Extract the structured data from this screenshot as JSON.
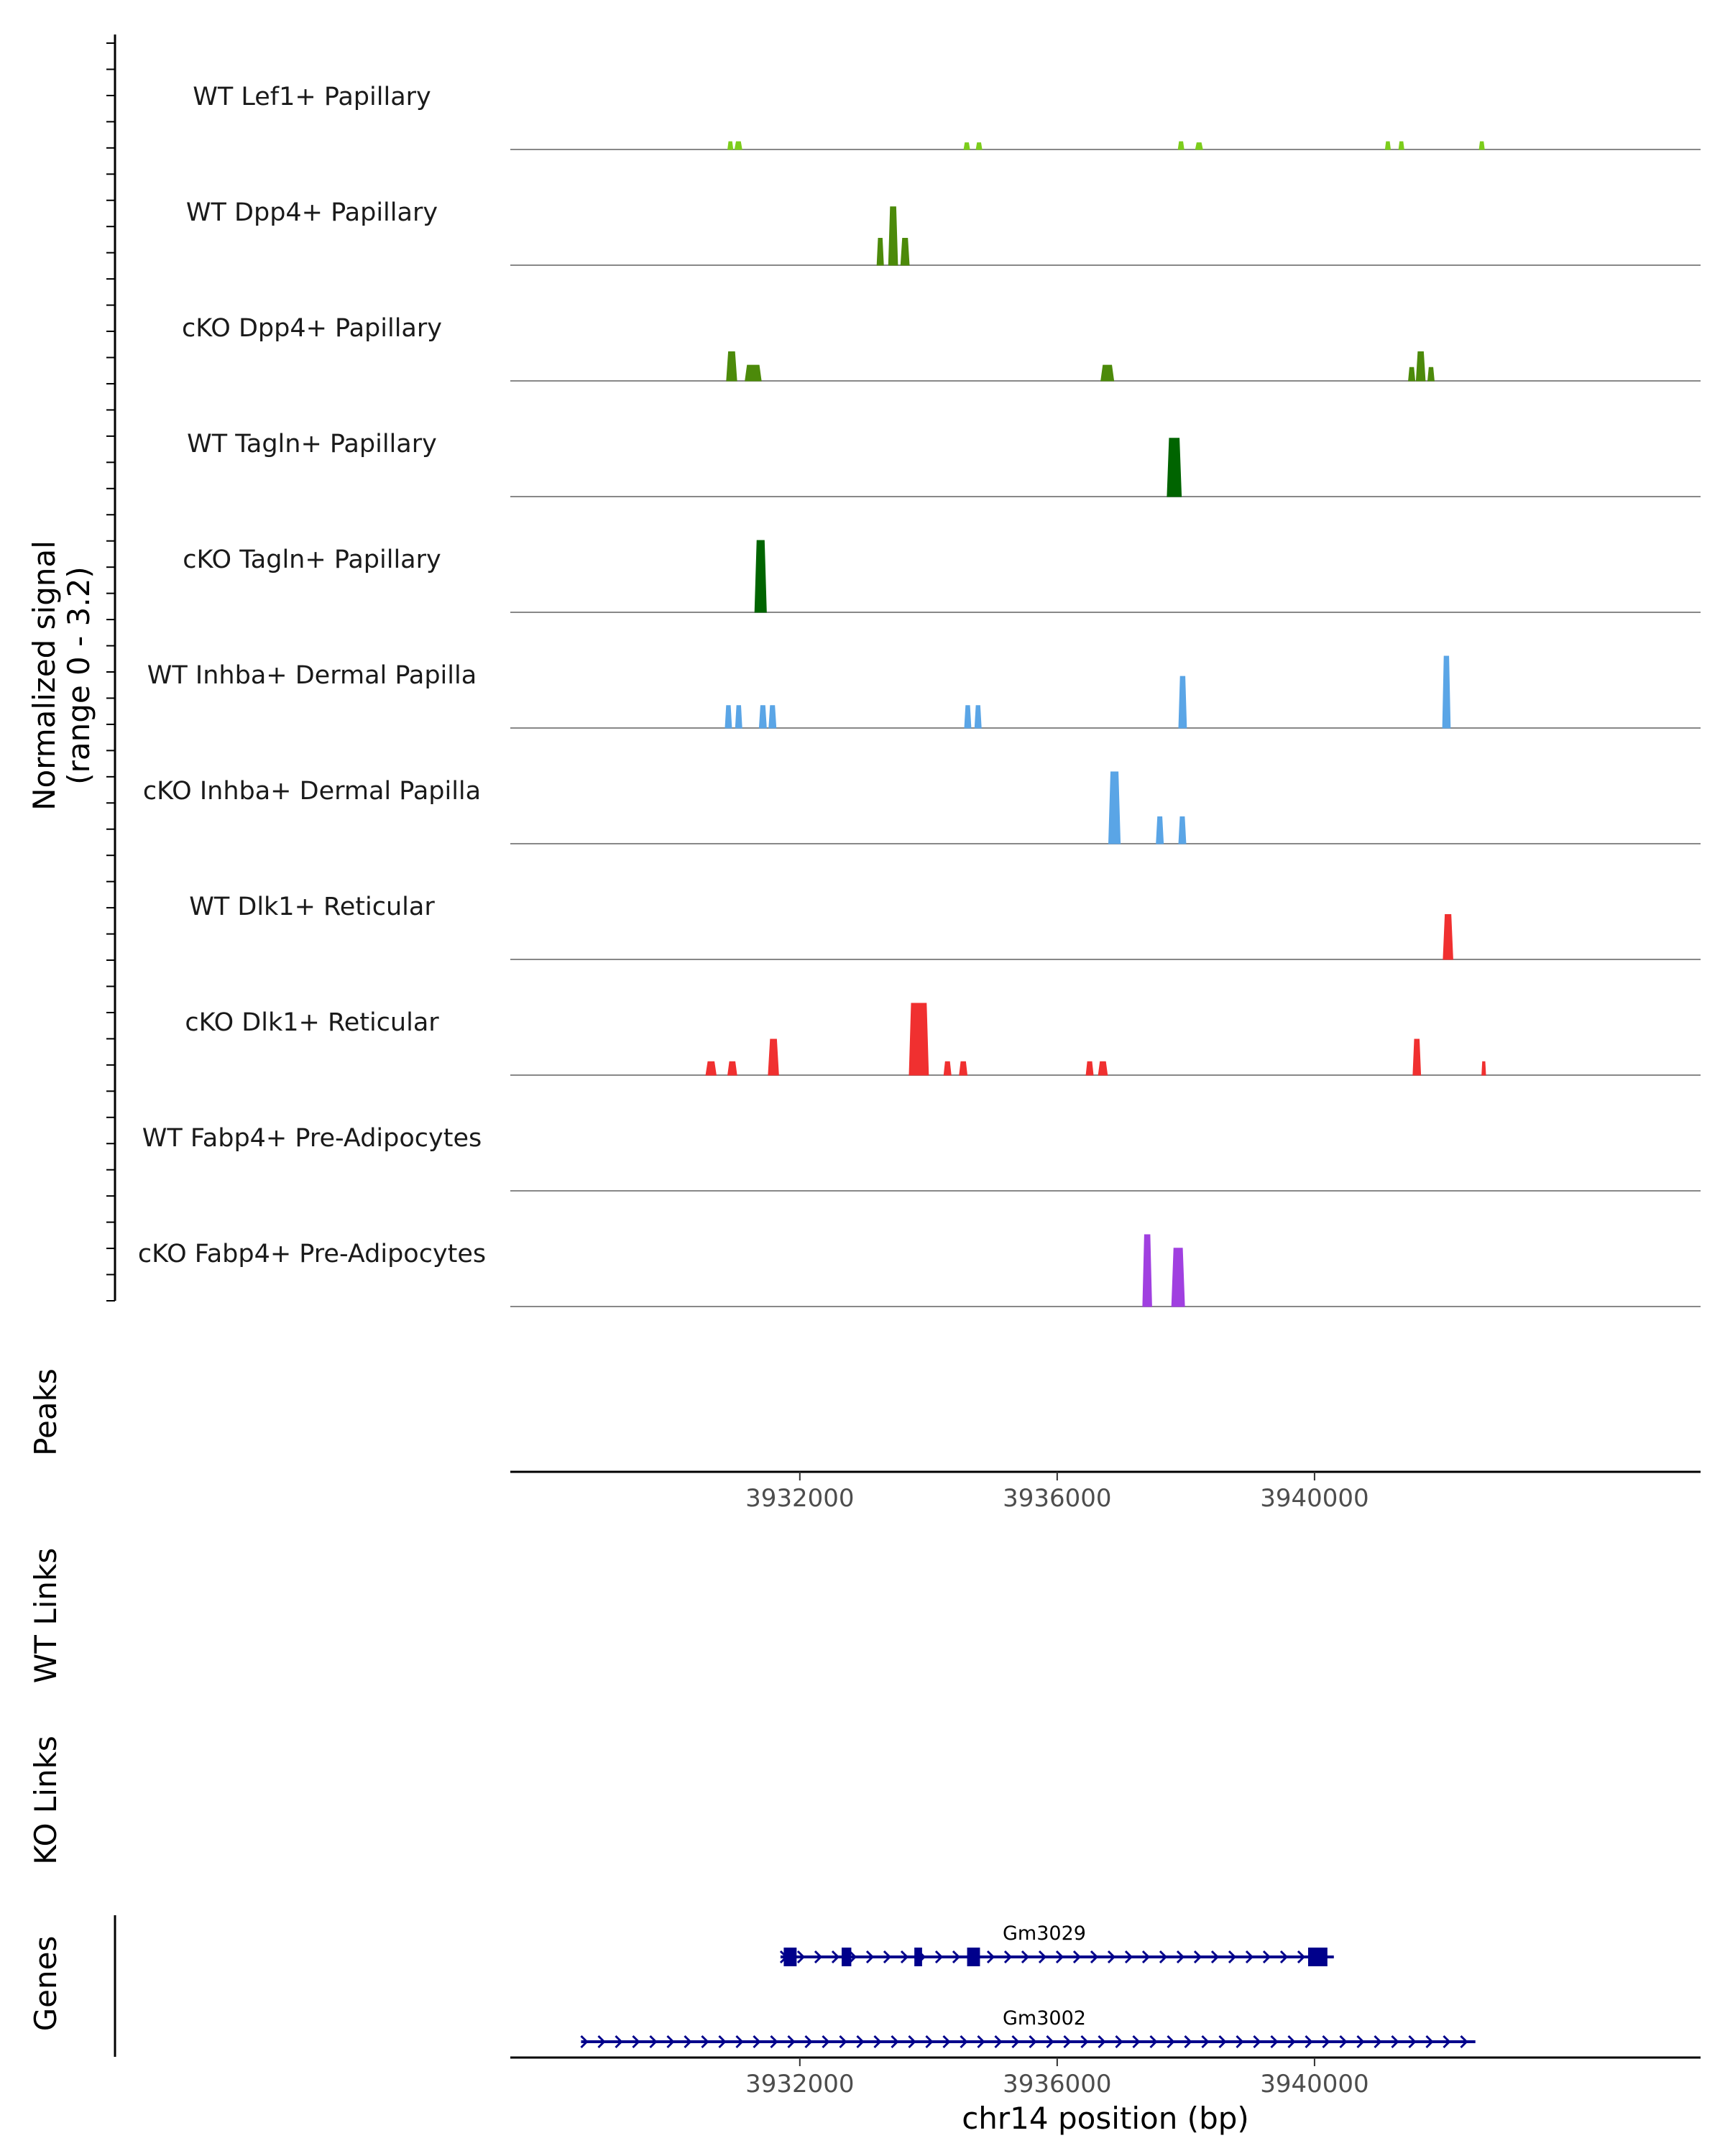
{
  "chart_data": {
    "type": "area",
    "title": "",
    "chromosome": "chr14",
    "xlabel": "chr14 position (bp)",
    "xlim": [
      3927500,
      3946000
    ],
    "x_ticks": [
      3932000,
      3936000,
      3940000
    ],
    "x_tick_labels": [
      "3932000",
      "3936000",
      "3940000"
    ],
    "ylabel_line1": "Normalized signal",
    "ylabel_line2": "(range 0 - 3.2)",
    "ylim": [
      0,
      3.2
    ],
    "track_labels": {
      "peaks": "Peaks",
      "wt_links": "WT Links",
      "ko_links": "KO Links",
      "genes": "Genes"
    },
    "series": [
      {
        "name": "WT Lef1+ Papillary",
        "color": "#7ccd1c",
        "peaks": [
          [
            3930880,
            3930960,
            0.35
          ],
          [
            3930990,
            3931100,
            0.35
          ],
          [
            3934550,
            3934640,
            0.3
          ],
          [
            3934740,
            3934830,
            0.3
          ],
          [
            3937880,
            3937970,
            0.35
          ],
          [
            3938150,
            3938260,
            0.3
          ],
          [
            3941100,
            3941180,
            0.35
          ],
          [
            3941310,
            3941390,
            0.35
          ],
          [
            3942560,
            3942640,
            0.35
          ]
        ]
      },
      {
        "name": "WT Dpp4+ Papillary",
        "color": "#4c8a0a",
        "peaks": [
          [
            3933200,
            3933300,
            1.2
          ],
          [
            3933380,
            3933520,
            2.6
          ],
          [
            3933570,
            3933700,
            1.2
          ]
        ]
      },
      {
        "name": "cKO Dpp4+ Papillary",
        "color": "#4c8a0a",
        "peaks": [
          [
            3930860,
            3931020,
            1.3
          ],
          [
            3931150,
            3931400,
            0.7
          ],
          [
            3936680,
            3936880,
            0.7
          ],
          [
            3941460,
            3941560,
            0.6
          ],
          [
            3941580,
            3941720,
            1.3
          ],
          [
            3941760,
            3941860,
            0.6
          ]
        ]
      },
      {
        "name": "WT Tagln+ Papillary",
        "color": "#006400",
        "peaks": [
          [
            3937710,
            3937930,
            2.6
          ]
        ]
      },
      {
        "name": "cKO Tagln+ Papillary",
        "color": "#006400",
        "peaks": [
          [
            3931300,
            3931480,
            3.2
          ]
        ]
      },
      {
        "name": "WT Inhba+ Dermal Papilla",
        "color": "#5aa5e6",
        "peaks": [
          [
            3930840,
            3930940,
            1.0
          ],
          [
            3931000,
            3931100,
            1.0
          ],
          [
            3931370,
            3931480,
            1.0
          ],
          [
            3931520,
            3931630,
            1.0
          ],
          [
            3934560,
            3934660,
            1.0
          ],
          [
            3934720,
            3934820,
            1.0
          ],
          [
            3937890,
            3938010,
            2.3
          ],
          [
            3941990,
            3942110,
            3.2
          ]
        ]
      },
      {
        "name": "cKO Inhba+ Dermal Papilla",
        "color": "#5aa5e6",
        "peaks": [
          [
            3936800,
            3936980,
            3.2
          ],
          [
            3937540,
            3937650,
            1.2
          ],
          [
            3937890,
            3938000,
            1.2
          ]
        ]
      },
      {
        "name": "WT Dlk1+ Reticular",
        "color": "#f03030",
        "peaks": [
          [
            3942000,
            3942150,
            2.0
          ]
        ]
      },
      {
        "name": "cKO Dlk1+ Reticular",
        "color": "#f03030",
        "peaks": [
          [
            3930540,
            3930700,
            0.6
          ],
          [
            3930880,
            3931020,
            0.6
          ],
          [
            3931510,
            3931670,
            1.6
          ],
          [
            3933700,
            3934000,
            3.2
          ],
          [
            3934240,
            3934350,
            0.6
          ],
          [
            3934480,
            3934600,
            0.6
          ],
          [
            3936450,
            3936560,
            0.6
          ],
          [
            3936640,
            3936780,
            0.6
          ],
          [
            3941530,
            3941650,
            1.6
          ],
          [
            3942600,
            3942660,
            0.6
          ]
        ]
      },
      {
        "name": "WT Fabp4+ Pre-Adipocytes",
        "color": "#a040e0",
        "peaks": []
      },
      {
        "name": "cKO Fabp4+ Pre-Adipocytes",
        "color": "#a040e0",
        "peaks": [
          [
            3937330,
            3937470,
            3.2
          ],
          [
            3937780,
            3937980,
            2.6
          ]
        ]
      }
    ],
    "genes": [
      {
        "name": "Gm3029",
        "color": "#00008b",
        "start": 3931700,
        "end": 3940300,
        "exons": [
          [
            3931750,
            3931950
          ],
          [
            3932650,
            3932800
          ],
          [
            3933780,
            3933900
          ],
          [
            3934600,
            3934800
          ],
          [
            3939900,
            3940200
          ]
        ]
      },
      {
        "name": "Gm3002",
        "color": "#00008b",
        "start": 3928600,
        "end": 3942500,
        "exons": []
      }
    ]
  }
}
